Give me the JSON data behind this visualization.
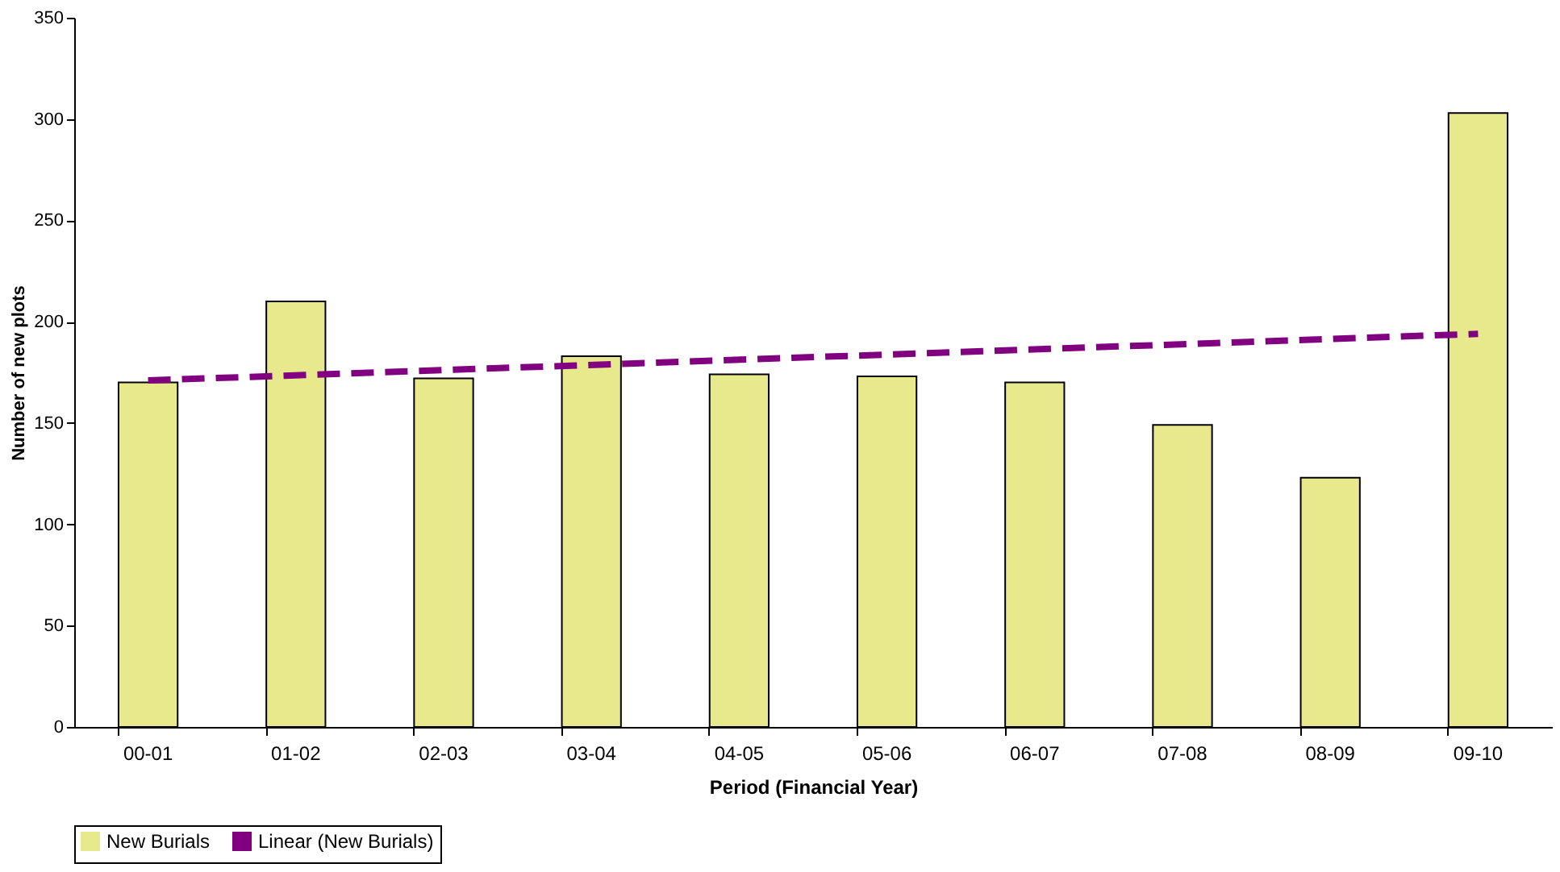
{
  "chart_data": {
    "type": "bar",
    "xlabel": "Period (Financial Year)",
    "ylabel": "Number of new plots",
    "categories": [
      "00-01",
      "01-02",
      "02-03",
      "03-04",
      "04-05",
      "05-06",
      "06-07",
      "07-08",
      "08-09",
      "09-10"
    ],
    "series": [
      {
        "name": "New Burials",
        "color": "#e8e88c",
        "values": [
          170,
          210,
          172,
          183,
          174,
          173,
          170,
          149,
          123,
          303
        ]
      },
      {
        "name": "Linear (New Burials)",
        "type": "line",
        "color": "#800080",
        "line_style": "dashed",
        "x": [
          "00-01",
          "09-10"
        ],
        "values": [
          171,
          194
        ]
      }
    ],
    "ylim": [
      0,
      350
    ],
    "yticks": [
      0,
      50,
      100,
      150,
      200,
      250,
      300,
      350
    ],
    "grid": false,
    "legend": "bottom"
  }
}
